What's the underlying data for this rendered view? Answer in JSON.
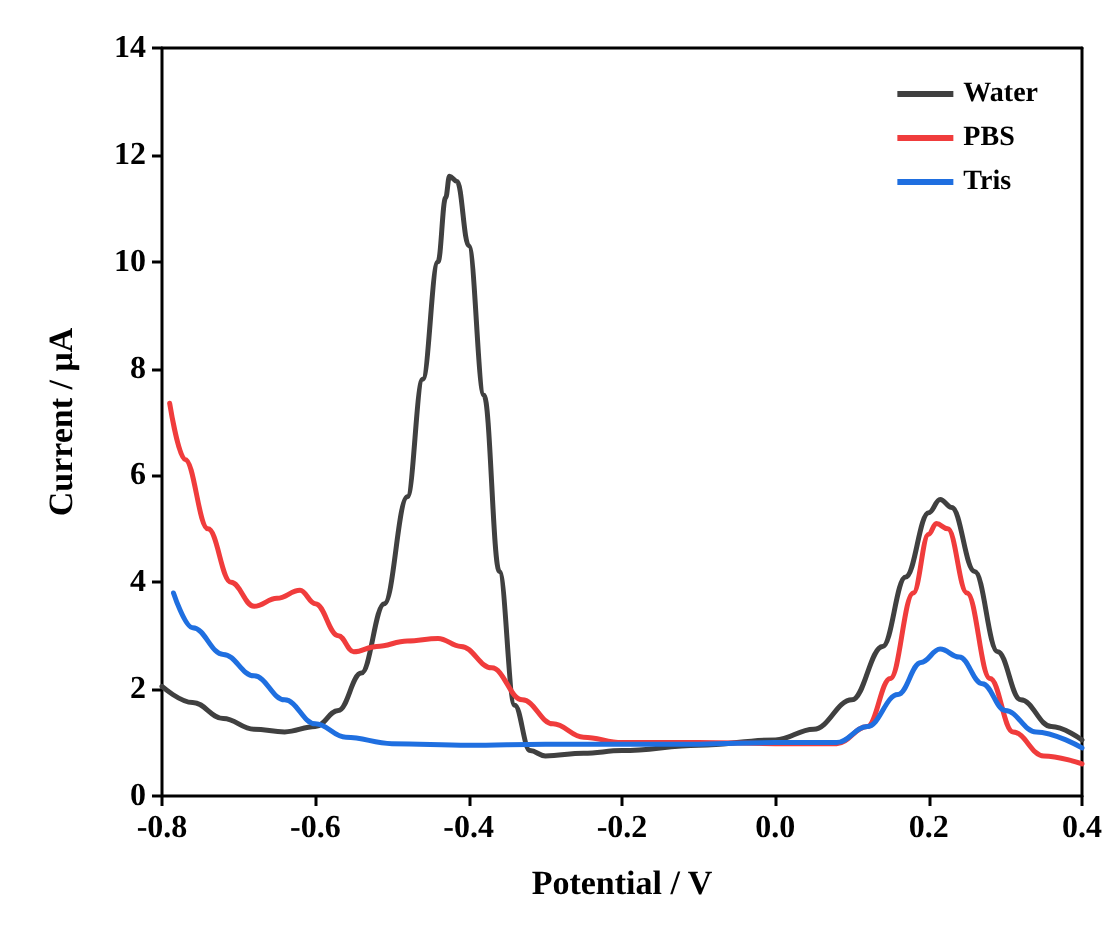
{
  "chart_data": {
    "type": "line",
    "xlabel": "Potential / V",
    "ylabel": "Current / μA",
    "xlim": [
      -0.8,
      0.4
    ],
    "xticks": [
      -0.8,
      -0.6,
      -0.4,
      -0.2,
      {
        "value": 0,
        "label": "0.0"
      },
      0.2,
      0.4
    ],
    "ylim": [
      0,
      14
    ],
    "yticks": [
      0,
      2,
      4,
      6,
      8,
      10,
      12,
      14
    ],
    "grid": false,
    "legend": "top right",
    "marker": "none",
    "line_style": "solid",
    "series": [
      {
        "name": "Water",
        "color": "#404040",
        "x": [
          -0.8,
          -0.76,
          -0.72,
          -0.68,
          -0.64,
          -0.6,
          -0.57,
          -0.54,
          -0.51,
          -0.48,
          -0.46,
          -0.44,
          -0.43,
          -0.425,
          -0.415,
          -0.4,
          -0.38,
          -0.36,
          -0.34,
          -0.32,
          -0.3,
          -0.25,
          -0.2,
          -0.1,
          0,
          0.05,
          0.1,
          0.14,
          0.17,
          0.2,
          0.215,
          0.23,
          0.26,
          0.29,
          0.32,
          0.36,
          0.4
        ],
        "values": [
          2.05,
          1.75,
          1.45,
          1.25,
          1.2,
          1.3,
          1.6,
          2.3,
          3.6,
          5.6,
          7.8,
          10.0,
          11.2,
          11.6,
          11.5,
          10.3,
          7.5,
          4.2,
          1.7,
          0.85,
          0.75,
          0.8,
          0.85,
          0.95,
          1.05,
          1.25,
          1.8,
          2.8,
          4.1,
          5.3,
          5.55,
          5.4,
          4.2,
          2.7,
          1.8,
          1.3,
          1.05
        ]
      },
      {
        "name": "PBS",
        "color": "#f03c3c",
        "x": [
          -0.79,
          -0.77,
          -0.74,
          -0.71,
          -0.68,
          -0.65,
          -0.62,
          -0.6,
          -0.57,
          -0.55,
          -0.52,
          -0.48,
          -0.44,
          -0.41,
          -0.37,
          -0.33,
          -0.29,
          -0.25,
          -0.2,
          -0.1,
          0,
          0.08,
          0.12,
          0.15,
          0.18,
          0.2,
          0.21,
          0.225,
          0.25,
          0.28,
          0.31,
          0.35,
          0.4
        ],
        "values": [
          7.35,
          6.3,
          5.0,
          4.0,
          3.55,
          3.7,
          3.85,
          3.6,
          3.0,
          2.7,
          2.8,
          2.9,
          2.95,
          2.8,
          2.4,
          1.8,
          1.35,
          1.1,
          1.0,
          1.0,
          0.98,
          0.98,
          1.3,
          2.2,
          3.8,
          4.9,
          5.1,
          5.0,
          3.8,
          2.2,
          1.2,
          0.75,
          0.6
        ]
      },
      {
        "name": "Tris",
        "color": "#1f6fe0",
        "x": [
          -0.785,
          -0.76,
          -0.72,
          -0.68,
          -0.64,
          -0.6,
          -0.56,
          -0.5,
          -0.4,
          -0.3,
          -0.2,
          -0.1,
          0,
          0.08,
          0.12,
          0.16,
          0.19,
          0.215,
          0.24,
          0.27,
          0.3,
          0.34,
          0.4
        ],
        "values": [
          3.8,
          3.15,
          2.65,
          2.25,
          1.8,
          1.35,
          1.1,
          0.98,
          0.95,
          0.97,
          0.97,
          0.97,
          1.0,
          1.0,
          1.3,
          1.9,
          2.5,
          2.75,
          2.6,
          2.1,
          1.6,
          1.2,
          0.9
        ]
      }
    ]
  }
}
